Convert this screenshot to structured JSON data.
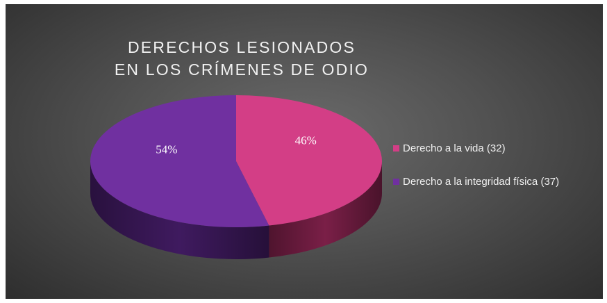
{
  "chart_data": {
    "type": "pie",
    "title_lines": [
      "DERECHOS LESIONADOS",
      "EN LOS CRÍMENES DE ODIO"
    ],
    "slices": [
      {
        "label": "Derecho a la vida (32)",
        "value": 32,
        "percent_label": "46%",
        "color": "#d33e86",
        "side_color": "#7a1f47"
      },
      {
        "label": "Derecho a la integridad física (37)",
        "value": 37,
        "percent_label": "54%",
        "color": "#7030a0",
        "side_color": "#3f1a5f"
      }
    ],
    "legend_position": "right",
    "style": "3d"
  }
}
